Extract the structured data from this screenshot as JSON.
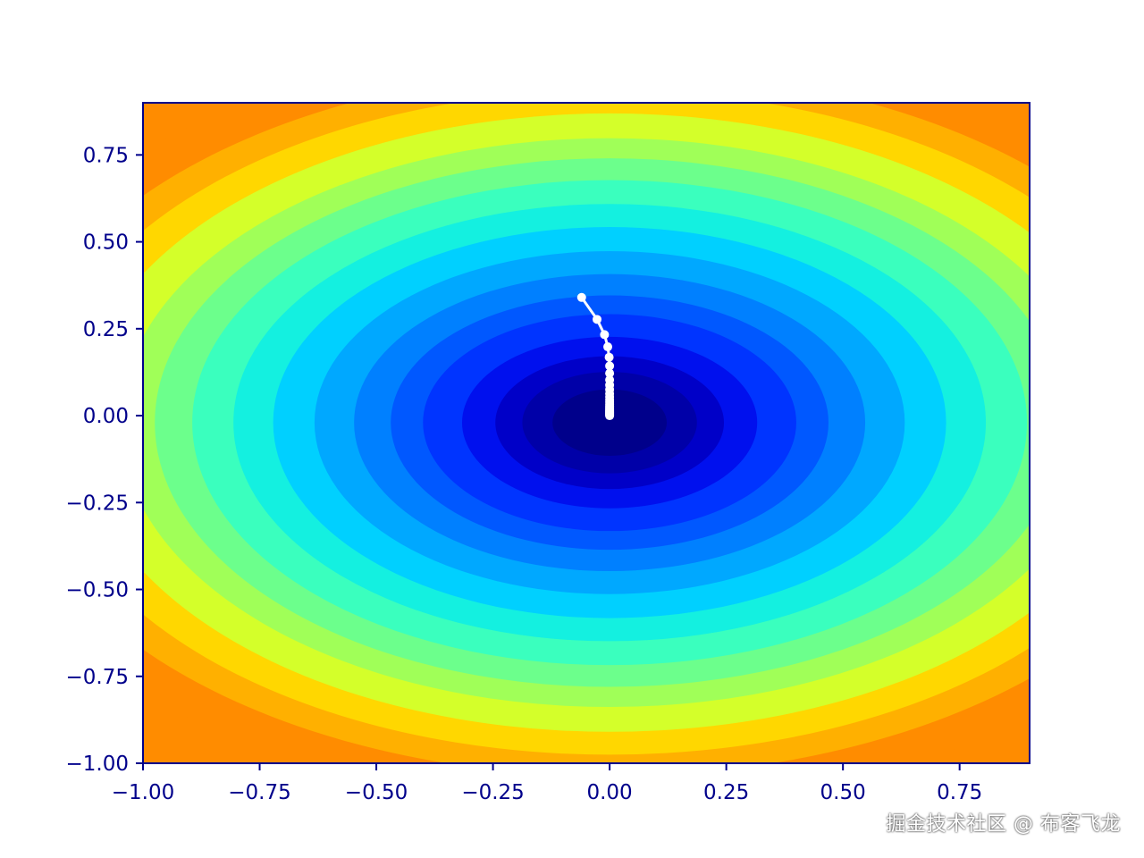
{
  "watermark": "掘金技术社区 @ 布客飞龙",
  "chart_data": {
    "type": "contour",
    "description_note": "",
    "function": "f(x,y) = x^2 + 1.5*y^2 style bowl",
    "xlim": [
      -1.0,
      0.9
    ],
    "ylim": [
      -1.0,
      0.9
    ],
    "x_ticks": [
      -1.0,
      -0.75,
      -0.5,
      -0.25,
      0.0,
      0.25,
      0.5,
      0.75
    ],
    "x_tick_labels": [
      "−1.00",
      "−0.75",
      "−0.50",
      "−0.25",
      "0.00",
      "0.25",
      "0.50",
      "0.75"
    ],
    "y_ticks": [
      0.75,
      0.5,
      0.25,
      0.0,
      -0.25,
      -0.5,
      -0.75,
      -1.0
    ],
    "y_tick_labels": [
      "0.75",
      "0.50",
      "0.25",
      "0.00",
      "−0.25",
      "−0.50",
      "−0.75",
      "−1.00"
    ],
    "colormap": "jet",
    "axis_color": "#00008b",
    "path_color": "#ffffff",
    "contour_levels": [
      {
        "level": 2.0,
        "color": "#ff8c00"
      },
      {
        "level": 1.7,
        "color": "#ffb000"
      },
      {
        "level": 1.5,
        "color": "#ffd700"
      },
      {
        "level": 1.3,
        "color": "#d4ff2a"
      },
      {
        "level": 1.1,
        "color": "#a0ff58"
      },
      {
        "level": 0.95,
        "color": "#6cff8c"
      },
      {
        "level": 0.8,
        "color": "#3affbe"
      },
      {
        "level": 0.65,
        "color": "#14f0e0"
      },
      {
        "level": 0.52,
        "color": "#00d0ff"
      },
      {
        "level": 0.4,
        "color": "#00a8ff"
      },
      {
        "level": 0.3,
        "color": "#0080ff"
      },
      {
        "level": 0.22,
        "color": "#0058ff"
      },
      {
        "level": 0.16,
        "color": "#0034ff"
      },
      {
        "level": 0.1,
        "color": "#0010ee"
      },
      {
        "level": 0.06,
        "color": "#0000c8"
      },
      {
        "level": 0.035,
        "color": "#0000a8"
      },
      {
        "level": 0.015,
        "color": "#00008b"
      }
    ],
    "path": [
      [
        -0.06,
        0.34
      ],
      [
        -0.027,
        0.277
      ],
      [
        -0.011,
        0.233
      ],
      [
        -0.004,
        0.198
      ],
      [
        -0.001,
        0.168
      ],
      [
        0.0,
        0.143
      ],
      [
        0.0,
        0.122
      ],
      [
        0.0,
        0.103
      ],
      [
        0.0,
        0.088
      ],
      [
        0.0,
        0.075
      ],
      [
        0.0,
        0.063
      ],
      [
        0.0,
        0.054
      ],
      [
        0.0,
        0.046
      ],
      [
        0.0,
        0.039
      ],
      [
        0.0,
        0.033
      ],
      [
        0.0,
        0.028
      ],
      [
        0.0,
        0.024
      ],
      [
        0.0,
        0.02
      ],
      [
        0.0,
        0.017
      ],
      [
        0.0,
        0.014
      ],
      [
        0.0,
        0.012
      ],
      [
        0.0,
        0.01
      ],
      [
        0.0,
        0.008
      ],
      [
        0.0,
        0.006
      ],
      [
        0.0,
        0.004
      ],
      [
        0.0,
        0.002
      ],
      [
        0.0,
        0.0
      ]
    ]
  }
}
